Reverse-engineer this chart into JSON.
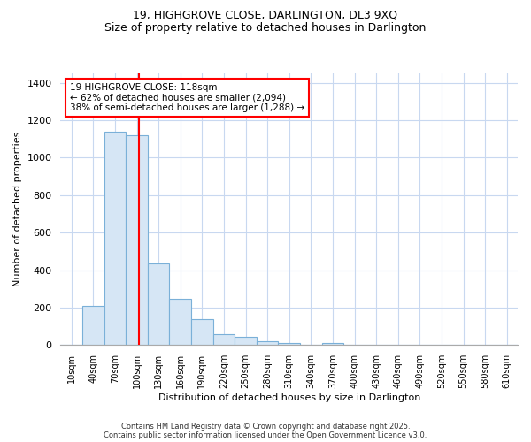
{
  "title1": "19, HIGHGROVE CLOSE, DARLINGTON, DL3 9XQ",
  "title2": "Size of property relative to detached houses in Darlington",
  "xlabel": "Distribution of detached houses by size in Darlington",
  "ylabel": "Number of detached properties",
  "bins": [
    10,
    40,
    70,
    100,
    130,
    160,
    190,
    220,
    250,
    280,
    310,
    340,
    370,
    400,
    430,
    460,
    490,
    520,
    550,
    580,
    610
  ],
  "values": [
    0,
    210,
    1140,
    1120,
    435,
    245,
    140,
    60,
    45,
    20,
    10,
    0,
    10,
    0,
    0,
    0,
    0,
    0,
    0,
    0,
    0
  ],
  "bar_color": "#d6e6f5",
  "bar_edge_color": "#7ab0d8",
  "red_line_x": 118,
  "annotation_line1": "19 HIGHGROVE CLOSE: 118sqm",
  "annotation_line2": "← 62% of detached houses are smaller (2,094)",
  "annotation_line3": "38% of semi-detached houses are larger (1,288) →",
  "annotation_box_color": "white",
  "annotation_box_edge": "red",
  "ylim": [
    0,
    1450
  ],
  "yticks": [
    0,
    200,
    400,
    600,
    800,
    1000,
    1200,
    1400
  ],
  "background_color": "#ffffff",
  "grid_color": "#c8d8f0",
  "footer1": "Contains HM Land Registry data © Crown copyright and database right 2025.",
  "footer2": "Contains public sector information licensed under the Open Government Licence v3.0."
}
